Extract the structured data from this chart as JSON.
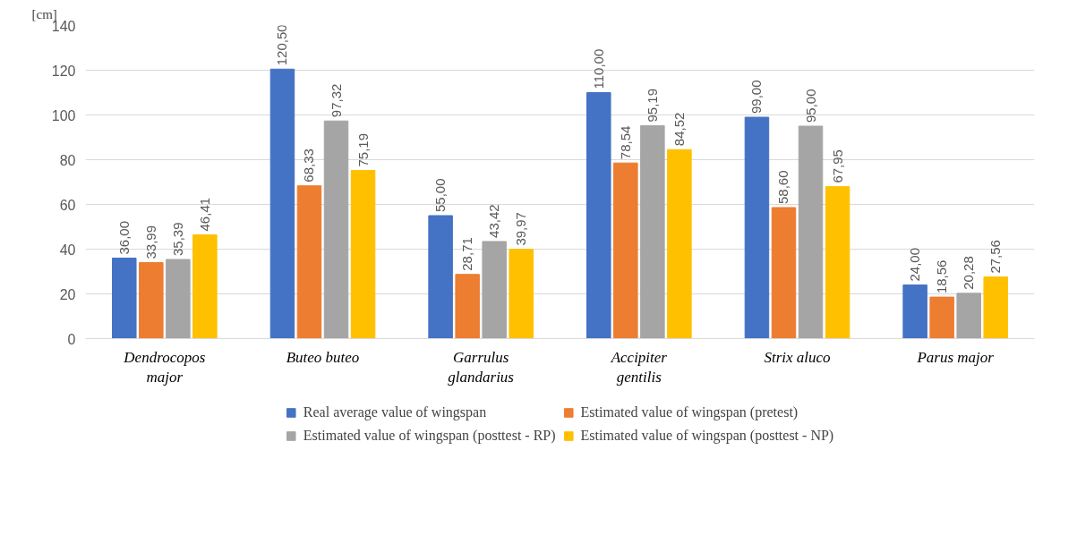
{
  "chart_data": {
    "type": "bar",
    "ylabel": "[cm]",
    "categories": [
      "Dendrocopos\nmajor",
      "Buteo buteo",
      "Garrulus\nglandarius",
      "Accipiter\ngentilis",
      "Strix aluco",
      "Parus major"
    ],
    "series": [
      {
        "name": "Real average value of wingspan",
        "color": "#4472c4",
        "values": [
          36.0,
          120.5,
          55.0,
          110.0,
          99.0,
          24.0
        ],
        "value_labels": [
          "36,00",
          "120,50",
          "55,00",
          "110,00",
          "99,00",
          "24,00"
        ]
      },
      {
        "name": "Estimated value of wingspan (pretest)",
        "color": "#ed7d31",
        "values": [
          33.99,
          68.33,
          28.71,
          78.54,
          58.6,
          18.56
        ],
        "value_labels": [
          "33,99",
          "68,33",
          "28,71",
          "78,54",
          "58,60",
          "18,56"
        ]
      },
      {
        "name": "Estimated value of wingspan (posttest - RP)",
        "color": "#a5a5a5",
        "values": [
          35.39,
          97.32,
          43.42,
          95.19,
          95.0,
          20.28
        ],
        "value_labels": [
          "35,39",
          "97,32",
          "43,42",
          "95,19",
          "95,00",
          "20,28"
        ]
      },
      {
        "name": "Estimated value of wingspan (posttest - NP)",
        "color": "#ffc000",
        "values": [
          46.41,
          75.19,
          39.97,
          84.52,
          67.95,
          27.56
        ],
        "value_labels": [
          "46,41",
          "75,19",
          "39,97",
          "84,52",
          "67,95",
          "27,56"
        ]
      }
    ],
    "ylim": [
      0,
      140
    ],
    "yticks": [
      0,
      20,
      40,
      60,
      80,
      100,
      120,
      140
    ],
    "grid": "y",
    "legend": "bottom"
  }
}
